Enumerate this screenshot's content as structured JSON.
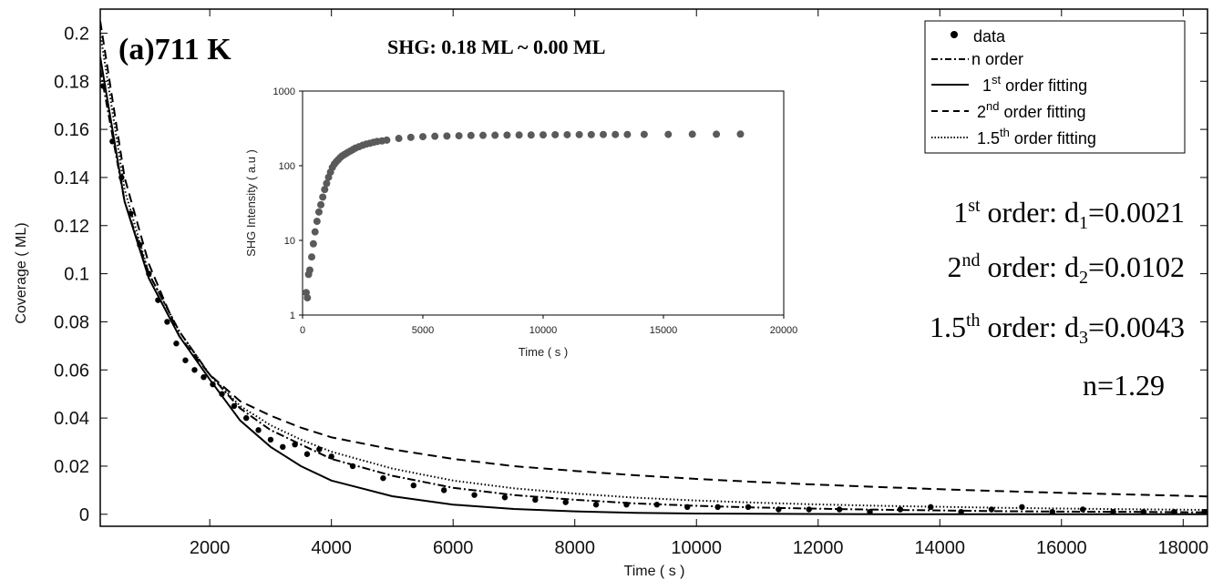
{
  "chart_data": [
    {
      "type": "scatter",
      "panel_label": "(a)711 K",
      "title": "SHG: 0.18 ML ~ 0.00 ML",
      "xlabel": "Time ( s )",
      "ylabel": "Coverage ( ML)",
      "xlim": [
        200,
        18400
      ],
      "ylim": [
        -0.005,
        0.21
      ],
      "xticks": [
        "2000",
        "4000",
        "6000",
        "8000",
        "10000",
        "12000",
        "14000",
        "16000",
        "18000"
      ],
      "yticks": [
        "0",
        "0.02",
        "0.04",
        "0.06",
        "0.08",
        "0.1",
        "0.12",
        "0.14",
        "0.16",
        "0.18",
        "0.2"
      ],
      "legend_position": "top-right",
      "series": [
        {
          "name": "data",
          "style": "points",
          "x": [
            250,
            400,
            550,
            700,
            850,
            1000,
            1150,
            1300,
            1450,
            1600,
            1750,
            1900,
            2050,
            2200,
            2400,
            2600,
            2800,
            3000,
            3200,
            3400,
            3600,
            3800,
            4000,
            4350,
            4850,
            5350,
            5850,
            6350,
            6850,
            7350,
            7850,
            8350,
            8850,
            9350,
            9850,
            10350,
            10850,
            11350,
            11850,
            12350,
            12850,
            13350,
            13850,
            14350,
            14850,
            15350,
            15850,
            16350,
            16850,
            17350,
            17850,
            18350
          ],
          "y": [
            0.178,
            0.155,
            0.14,
            0.125,
            0.112,
            0.1,
            0.089,
            0.08,
            0.071,
            0.064,
            0.06,
            0.057,
            0.054,
            0.05,
            0.045,
            0.04,
            0.035,
            0.031,
            0.028,
            0.029,
            0.025,
            0.027,
            0.024,
            0.02,
            0.015,
            0.012,
            0.01,
            0.008,
            0.007,
            0.006,
            0.005,
            0.004,
            0.004,
            0.004,
            0.003,
            0.003,
            0.003,
            0.002,
            0.002,
            0.002,
            0.001,
            0.002,
            0.003,
            0.001,
            0.002,
            0.003,
            0.001,
            0.002,
            0.001,
            0.001,
            0.001,
            0.001
          ]
        },
        {
          "name": "n order",
          "style": "dashdot",
          "x": [
            200,
            600,
            1000,
            1500,
            2000,
            2500,
            3000,
            3500,
            4000,
            5000,
            6000,
            7000,
            8000,
            9000,
            10000,
            11000,
            12000,
            13000,
            14000,
            15000,
            16000,
            17000,
            18400
          ],
          "y": [
            0.185,
            0.13,
            0.1,
            0.076,
            0.058,
            0.044,
            0.035,
            0.029,
            0.023,
            0.016,
            0.011,
            0.008,
            0.006,
            0.0045,
            0.0035,
            0.0028,
            0.0023,
            0.0019,
            0.0016,
            0.0013,
            0.0011,
            0.001,
            0.0008
          ]
        },
        {
          "name": "1st order fitting",
          "style": "solid",
          "x": [
            200,
            600,
            1000,
            1500,
            2000,
            2500,
            3000,
            3500,
            4000,
            5000,
            6000,
            7000,
            8000,
            9000,
            10000,
            11000,
            12000,
            13000,
            14000,
            15000,
            16000,
            17000,
            18400
          ],
          "y": [
            0.19,
            0.13,
            0.098,
            0.074,
            0.056,
            0.039,
            0.028,
            0.02,
            0.014,
            0.0075,
            0.004,
            0.0022,
            0.0012,
            0.0006,
            0.0003,
            0.0002,
            0.0001,
            0.0,
            0.0,
            0.0,
            0.0,
            0.0,
            0.0
          ]
        },
        {
          "name": "2nd order fitting",
          "style": "dashed",
          "x": [
            200,
            600,
            1000,
            1500,
            2000,
            2500,
            3000,
            3500,
            4000,
            5000,
            6000,
            7000,
            8000,
            9000,
            10000,
            11000,
            12000,
            13000,
            14000,
            15000,
            16000,
            17000,
            18400
          ],
          "y": [
            0.205,
            0.14,
            0.104,
            0.074,
            0.058,
            0.047,
            0.041,
            0.036,
            0.032,
            0.027,
            0.023,
            0.02,
            0.018,
            0.0162,
            0.0147,
            0.0134,
            0.0123,
            0.0113,
            0.0104,
            0.0096,
            0.0089,
            0.0083,
            0.0074
          ]
        },
        {
          "name": "1.5th order fitting",
          "style": "dotted",
          "x": [
            200,
            600,
            1000,
            1500,
            2000,
            2500,
            3000,
            3500,
            4000,
            5000,
            6000,
            7000,
            8000,
            9000,
            10000,
            11000,
            12000,
            13000,
            14000,
            15000,
            16000,
            17000,
            18400
          ],
          "y": [
            0.2,
            0.135,
            0.1,
            0.076,
            0.058,
            0.045,
            0.037,
            0.031,
            0.026,
            0.019,
            0.014,
            0.0108,
            0.0086,
            0.0069,
            0.0057,
            0.0048,
            0.0041,
            0.0035,
            0.0031,
            0.0027,
            0.0024,
            0.0021,
            0.0018
          ]
        }
      ]
    },
    {
      "type": "scatter",
      "xlabel": "Time ( s )",
      "ylabel": "SHG Intensity ( a.u )",
      "xlim": [
        0,
        20000
      ],
      "ylim": [
        1,
        1000
      ],
      "yscale": "log",
      "xticks": [
        "0",
        "5000",
        "10000",
        "15000",
        "20000"
      ],
      "yticks": [
        "1",
        "10",
        "100",
        "1000"
      ],
      "series": [
        {
          "x": [
            150,
            200,
            250,
            300,
            380,
            450,
            520,
            600,
            680,
            760,
            840,
            920,
            1000,
            1080,
            1160,
            1240,
            1320,
            1400,
            1480,
            1560,
            1640,
            1720,
            1800,
            1900,
            2000,
            2100,
            2200,
            2350,
            2500,
            2650,
            2800,
            2950,
            3100,
            3300,
            3500,
            4000,
            4500,
            5000,
            5500,
            6000,
            6500,
            7000,
            7500,
            8000,
            8500,
            9000,
            9500,
            10000,
            10500,
            11000,
            11500,
            12000,
            12500,
            13000,
            13500,
            14200,
            15200,
            16200,
            17200,
            18200
          ],
          "y": [
            2.0,
            1.7,
            3.5,
            4,
            6,
            9,
            13,
            18,
            24,
            30,
            38,
            48,
            58,
            70,
            82,
            95,
            105,
            113,
            120,
            128,
            135,
            140,
            145,
            152,
            158,
            165,
            172,
            180,
            188,
            195,
            200,
            206,
            211,
            215,
            220,
            232,
            240,
            245,
            248,
            250,
            252,
            254,
            255,
            256,
            257,
            258,
            258,
            259,
            260,
            260,
            261,
            261,
            262,
            262,
            262,
            263,
            263,
            264,
            264,
            265
          ]
        }
      ]
    }
  ],
  "annotations": {
    "first_order": {
      "num": "1",
      "sup": "st",
      "mid": " order: d",
      "sub": "1",
      "val": "=0.0021"
    },
    "second_order": {
      "num": "2",
      "sup": "nd",
      "mid": " order: d",
      "sub": "2",
      "val": "=0.0102"
    },
    "onehalf_order": {
      "num": "1.5",
      "sup": "th",
      "mid": " order: d",
      "sub": "3",
      "val": "=0.0043"
    },
    "n_value": "n=1.29"
  },
  "legend": {
    "data": "data",
    "n_order": "n order",
    "first": {
      "num": "1",
      "sup": "st",
      "rest": " order fitting"
    },
    "second": {
      "num": "2",
      "sup": "nd",
      "rest": " order fitting"
    },
    "onehalf": {
      "num": "1.5",
      "sup": "th",
      "rest": " order fitting"
    }
  }
}
